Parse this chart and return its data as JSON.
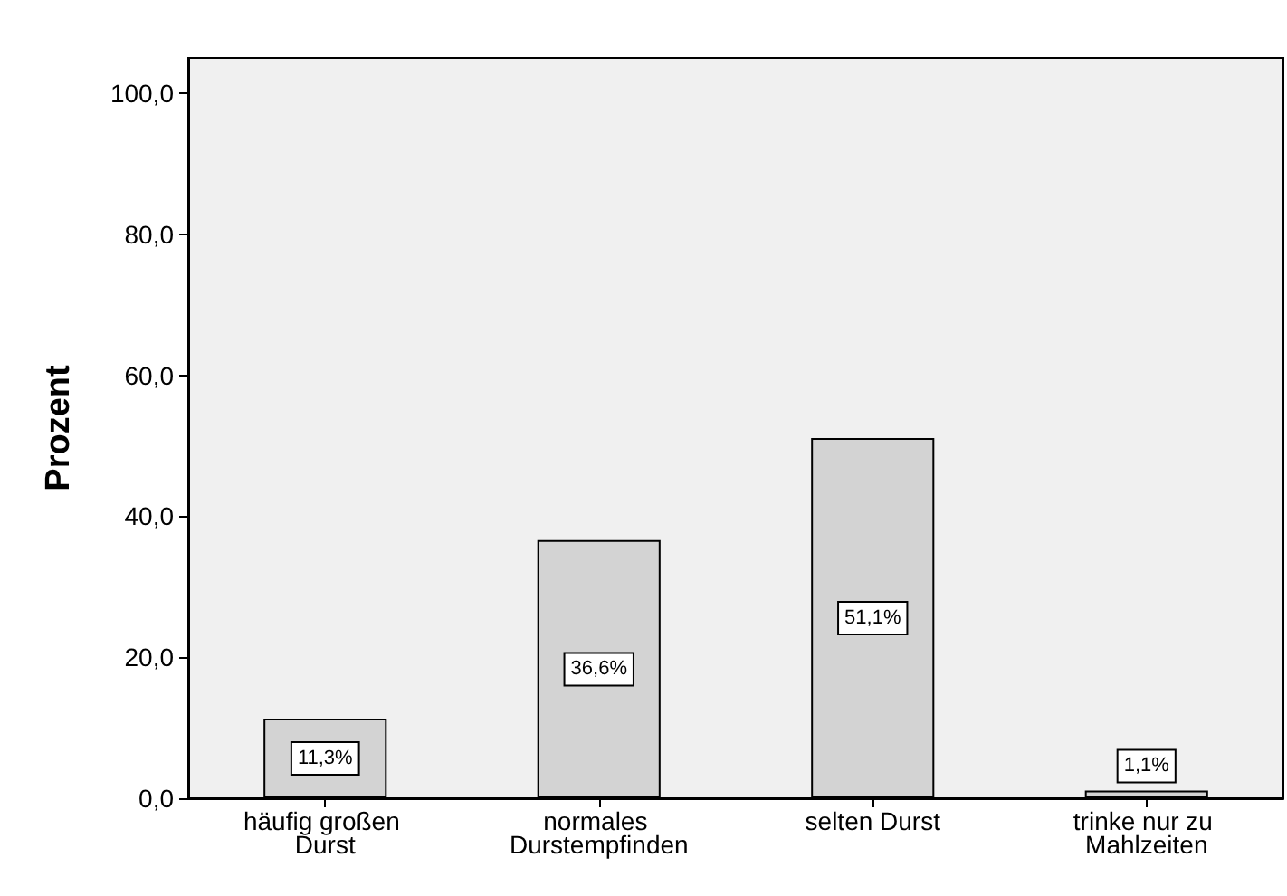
{
  "chart_data": {
    "type": "bar",
    "ylabel": "Prozent",
    "categories": [
      "häufig großen Durst",
      "normales Durstempfinden",
      "selten Durst",
      "trinke nur zu Mahlzeiten"
    ],
    "values": [
      11.3,
      36.6,
      51.1,
      1.1
    ],
    "value_labels": [
      "11,3%",
      "36,6%",
      "51,1%",
      "1,1%"
    ],
    "color": "#d3d3d3",
    "ylim": [
      0,
      105
    ],
    "yticks": [
      {
        "value": 0,
        "label": "0,0"
      },
      {
        "value": 20,
        "label": "20,0"
      },
      {
        "value": 40,
        "label": "40,0"
      },
      {
        "value": 60,
        "label": "60,0"
      },
      {
        "value": 80,
        "label": "80,0"
      },
      {
        "value": 100,
        "label": "100,0"
      }
    ],
    "grid": false
  }
}
